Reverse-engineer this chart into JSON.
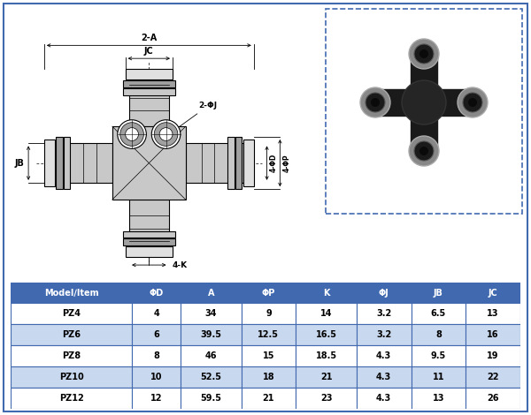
{
  "table_headers": [
    "Model∕Item",
    "ΦD",
    "A",
    "ΦP",
    "K",
    "ΦJ",
    "JB",
    "JC"
  ],
  "table_data": [
    [
      "PZ4",
      "4",
      "34",
      "9",
      "14",
      "3.2",
      "6.5",
      "13"
    ],
    [
      "PZ6",
      "6",
      "39.5",
      "12.5",
      "16.5",
      "3.2",
      "8",
      "16"
    ],
    [
      "PZ8",
      "8",
      "46",
      "15",
      "18.5",
      "4.3",
      "9.5",
      "19"
    ],
    [
      "PZ10",
      "10",
      "52.5",
      "18",
      "21",
      "4.3",
      "11",
      "22"
    ],
    [
      "PZ12",
      "12",
      "59.5",
      "21",
      "23",
      "4.3",
      "13",
      "26"
    ]
  ],
  "header_bg": "#4169B0",
  "header_fg": "#FFFFFF",
  "row_bg_odd": "#FFFFFF",
  "row_bg_even": "#C8D8EE",
  "border_color": "#4169B0",
  "outer_border": "#4169B0",
  "part_fill": "#C8C8C8",
  "part_fill_dark": "#A0A0A0",
  "part_fill_light": "#E0E0E0",
  "part_line": "#000000",
  "dim_color": "#000000",
  "photo_border": "#4169B0"
}
